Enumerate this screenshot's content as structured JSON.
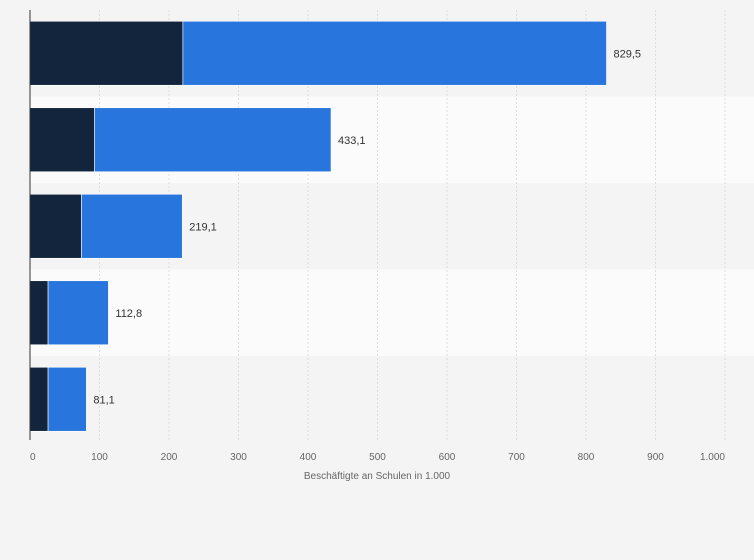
{
  "chart_data": {
    "type": "bar",
    "orientation": "horizontal",
    "stacked": true,
    "categories": [
      "",
      "",
      "",
      "",
      ""
    ],
    "series": [
      {
        "values": [
          220,
          93,
          74,
          26,
          26
        ],
        "color": "#13253d"
      },
      {
        "values": [
          609.5,
          340.1,
          145.1,
          86.8,
          55.1
        ],
        "color": "#2876dd"
      }
    ],
    "totals": [
      829.5,
      433.1,
      219.1,
      112.8,
      81.1
    ],
    "total_labels": [
      "829,5",
      "433,1",
      "219,1",
      "112,8",
      "81,1"
    ],
    "xlim": [
      0,
      1000
    ],
    "xticks": [
      0,
      100,
      200,
      300,
      400,
      500,
      600,
      700,
      800,
      900,
      1000
    ],
    "xtick_labels": [
      "0",
      "100",
      "200",
      "300",
      "400",
      "500",
      "600",
      "700",
      "800",
      "900",
      "1.000"
    ],
    "xlabel": "Beschäftigte an Schulen in 1.000",
    "ylabel": "",
    "title": "",
    "grid": "vertical",
    "legend": "none"
  }
}
